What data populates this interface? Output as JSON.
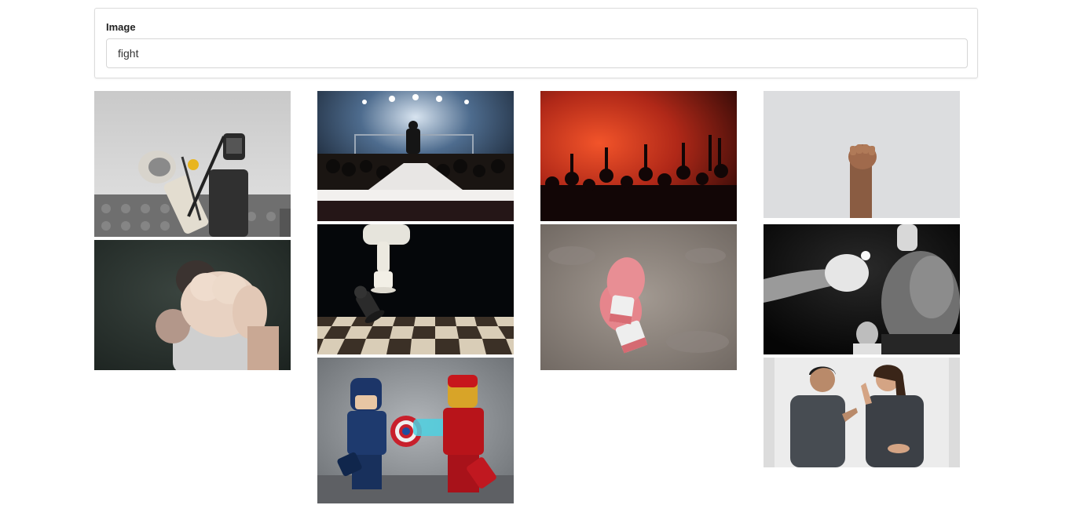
{
  "search": {
    "label": "Image",
    "value": "fight"
  },
  "colors": {
    "border": "#dcdcdc",
    "text": "#222222"
  },
  "gallery": {
    "images": [
      {
        "subject": "lego-fencers",
        "column": 1
      },
      {
        "subject": "fist-punch",
        "column": 1
      },
      {
        "subject": "boxing-ring-entrance",
        "column": 2
      },
      {
        "subject": "chess-knockdown",
        "column": 2
      },
      {
        "subject": "lego-captain-america-vs-iron-man",
        "column": 2
      },
      {
        "subject": "red-smoke-crowd",
        "column": 3
      },
      {
        "subject": "boxing-gloves-on-concrete",
        "column": 3
      },
      {
        "subject": "raised-fist",
        "column": 4
      },
      {
        "subject": "boxer-punch-bw",
        "column": 4
      },
      {
        "subject": "couple-arguing",
        "column": 4
      }
    ]
  }
}
